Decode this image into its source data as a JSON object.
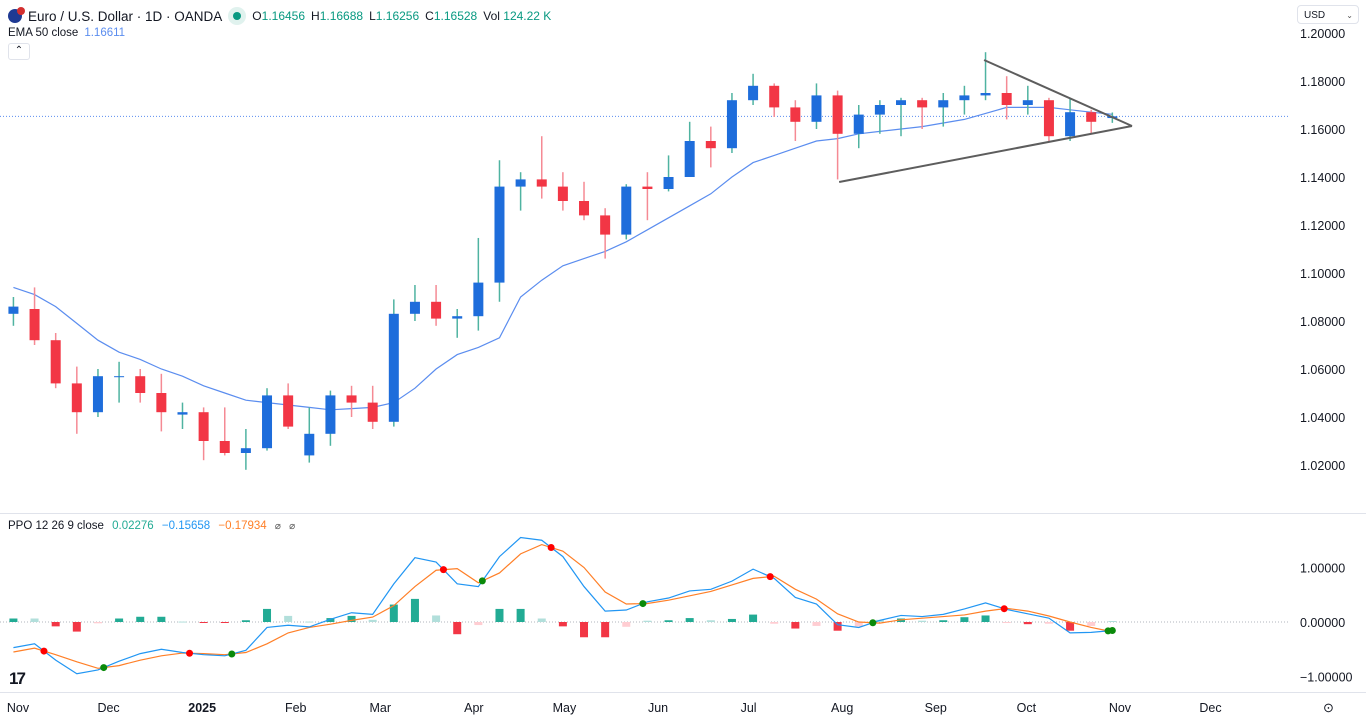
{
  "header": {
    "symbol_title": "Euro / U.S. Dollar · 1D · OANDA",
    "market_status": "open",
    "ohlc": {
      "o_label": "O",
      "o": "1.16456",
      "h_label": "H",
      "h": "1.16688",
      "l_label": "L",
      "l": "1.16256",
      "c_label": "C",
      "c": "1.16528",
      "vol_label": "Vol",
      "vol": "124.22 K"
    },
    "ema_label": "EMA 50 close",
    "ema_value": "1.16611",
    "collapse_icon": "chevron-up-icon",
    "currency": "USD"
  },
  "ppo_legend": {
    "label": "PPO 12 26 9 close",
    "hist": "0.02276",
    "ppo": "−0.15658",
    "signal": "−0.17934",
    "icons": [
      "⌀",
      "⌀"
    ]
  },
  "colors": {
    "up": "#1e6ddb",
    "up_wick": "#4fb3a1",
    "down": "#f23645",
    "ema": "#5b8def",
    "ppo": "#2196f3",
    "signal": "#ff7f27",
    "hist_up": "#22ab94",
    "hist_down": "#f23645",
    "trendline": "#5d5d5d",
    "price_line": "#5b8def"
  },
  "chart_data": [
    {
      "type": "candlestick",
      "title": "Euro / U.S. Dollar · 1D · OANDA",
      "ylim": [
        1.0,
        1.2
      ],
      "y_ticks": [
        "1.20000",
        "1.18000",
        "1.16000",
        "1.14000",
        "1.12000",
        "1.10000",
        "1.08000",
        "1.06000",
        "1.04000",
        "1.02000"
      ],
      "x_ticks": [
        "Nov",
        "Dec",
        "2025",
        "Feb",
        "Mar",
        "Apr",
        "May",
        "Jun",
        "Jul",
        "Aug",
        "Sep",
        "Oct",
        "Nov",
        "Dec"
      ],
      "grid": false,
      "last_price": 1.16528,
      "ohlc_weekly": [
        [
          "2024-10-28",
          1.083,
          1.09,
          1.078,
          1.086
        ],
        [
          "2024-11-04",
          1.085,
          1.094,
          1.07,
          1.072
        ],
        [
          "2024-11-11",
          1.072,
          1.075,
          1.052,
          1.054
        ],
        [
          "2024-11-18",
          1.054,
          1.061,
          1.033,
          1.042
        ],
        [
          "2024-11-25",
          1.042,
          1.06,
          1.04,
          1.057
        ],
        [
          "2024-12-02",
          1.057,
          1.063,
          1.046,
          1.057
        ],
        [
          "2024-12-09",
          1.057,
          1.06,
          1.046,
          1.05
        ],
        [
          "2024-12-16",
          1.05,
          1.058,
          1.034,
          1.042
        ],
        [
          "2024-12-23",
          1.041,
          1.046,
          1.035,
          1.042
        ],
        [
          "2024-12-30",
          1.042,
          1.044,
          1.022,
          1.03
        ],
        [
          "2025-01-06",
          1.03,
          1.044,
          1.024,
          1.025
        ],
        [
          "2025-01-13",
          1.025,
          1.035,
          1.018,
          1.027
        ],
        [
          "2025-01-20",
          1.027,
          1.052,
          1.026,
          1.049
        ],
        [
          "2025-01-27",
          1.049,
          1.054,
          1.035,
          1.036
        ],
        [
          "2025-02-03",
          1.024,
          1.044,
          1.021,
          1.033
        ],
        [
          "2025-02-10",
          1.033,
          1.051,
          1.028,
          1.049
        ],
        [
          "2025-02-17",
          1.049,
          1.053,
          1.04,
          1.046
        ],
        [
          "2025-02-24",
          1.046,
          1.053,
          1.035,
          1.038
        ],
        [
          "2025-03-03",
          1.038,
          1.089,
          1.036,
          1.083
        ],
        [
          "2025-03-10",
          1.083,
          1.095,
          1.08,
          1.088
        ],
        [
          "2025-03-17",
          1.088,
          1.095,
          1.078,
          1.081
        ],
        [
          "2025-03-24",
          1.081,
          1.085,
          1.073,
          1.082
        ],
        [
          "2025-03-31",
          1.082,
          1.1146,
          1.076,
          1.096
        ],
        [
          "2025-04-07",
          1.096,
          1.147,
          1.088,
          1.136
        ],
        [
          "2025-04-14",
          1.136,
          1.142,
          1.126,
          1.139
        ],
        [
          "2025-04-21",
          1.139,
          1.157,
          1.131,
          1.136
        ],
        [
          "2025-04-28",
          1.136,
          1.142,
          1.126,
          1.13
        ],
        [
          "2025-05-05",
          1.13,
          1.138,
          1.122,
          1.124
        ],
        [
          "2025-05-12",
          1.124,
          1.127,
          1.106,
          1.116
        ],
        [
          "2025-05-19",
          1.116,
          1.137,
          1.114,
          1.136
        ],
        [
          "2025-05-26",
          1.136,
          1.142,
          1.122,
          1.135
        ],
        [
          "2025-06-02",
          1.135,
          1.149,
          1.134,
          1.14
        ],
        [
          "2025-06-09",
          1.14,
          1.163,
          1.141,
          1.155
        ],
        [
          "2025-06-16",
          1.155,
          1.161,
          1.144,
          1.152
        ],
        [
          "2025-06-23",
          1.152,
          1.175,
          1.15,
          1.172
        ],
        [
          "2025-06-30",
          1.172,
          1.183,
          1.17,
          1.178
        ],
        [
          "2025-07-07",
          1.178,
          1.179,
          1.165,
          1.169
        ],
        [
          "2025-07-14",
          1.169,
          1.172,
          1.155,
          1.163
        ],
        [
          "2025-07-21",
          1.163,
          1.179,
          1.16,
          1.174
        ],
        [
          "2025-07-28",
          1.174,
          1.176,
          1.139,
          1.158
        ],
        [
          "2025-08-04",
          1.158,
          1.17,
          1.152,
          1.166
        ],
        [
          "2025-08-11",
          1.166,
          1.172,
          1.158,
          1.17
        ],
        [
          "2025-08-18",
          1.17,
          1.173,
          1.157,
          1.172
        ],
        [
          "2025-08-25",
          1.172,
          1.173,
          1.16,
          1.169
        ],
        [
          "2025-09-01",
          1.169,
          1.175,
          1.161,
          1.172
        ],
        [
          "2025-09-08",
          1.172,
          1.178,
          1.166,
          1.174
        ],
        [
          "2025-09-15",
          1.174,
          1.192,
          1.172,
          1.175
        ],
        [
          "2025-09-22",
          1.175,
          1.182,
          1.164,
          1.17
        ],
        [
          "2025-09-29",
          1.17,
          1.178,
          1.166,
          1.172
        ],
        [
          "2025-10-06",
          1.172,
          1.173,
          1.155,
          1.157
        ],
        [
          "2025-10-13",
          1.157,
          1.173,
          1.155,
          1.167
        ],
        [
          "2025-10-20",
          1.167,
          1.168,
          1.158,
          1.163
        ],
        [
          "2025-10-27",
          1.16456,
          1.16688,
          1.16256,
          1.16528
        ]
      ],
      "ema50": [
        1.094,
        1.091,
        1.086,
        1.079,
        1.072,
        1.067,
        1.064,
        1.06,
        1.057,
        1.053,
        1.05,
        1.047,
        1.046,
        1.045,
        1.044,
        1.043,
        1.0435,
        1.044,
        1.046,
        1.052,
        1.06,
        1.066,
        1.069,
        1.073,
        1.09,
        1.097,
        1.103,
        1.106,
        1.109,
        1.113,
        1.118,
        1.123,
        1.128,
        1.133,
        1.14,
        1.146,
        1.149,
        1.152,
        1.155,
        1.156,
        1.158,
        1.159,
        1.16,
        1.161,
        1.1625,
        1.164,
        1.1665,
        1.169,
        1.169,
        1.169,
        1.168,
        1.167,
        1.16611
      ],
      "trendlines": [
        {
          "from": [
            "2025-09-17",
            1.18875
          ],
          "to": [
            "2025-11-05",
            1.16125
          ]
        },
        {
          "from": [
            "2025-07-31",
            1.1379
          ],
          "to": [
            "2025-11-05",
            1.16125
          ]
        }
      ]
    },
    {
      "type": "line",
      "title": "PPO 12 26 9 close",
      "ylim": [
        -1.2,
        1.8
      ],
      "y_ticks": [
        "1.00000",
        "0.00000",
        "−1.00000"
      ],
      "series": [
        {
          "name": "PPO",
          "values": [
            -0.47,
            -0.4,
            -0.7,
            -0.95,
            -0.88,
            -0.72,
            -0.58,
            -0.5,
            -0.56,
            -0.6,
            -0.62,
            -0.52,
            -0.1,
            -0.06,
            -0.09,
            0.05,
            0.17,
            0.14,
            0.7,
            1.18,
            1.1,
            0.7,
            0.65,
            1.2,
            1.55,
            1.5,
            1.2,
            0.65,
            0.2,
            0.22,
            0.37,
            0.44,
            0.57,
            0.6,
            0.75,
            0.97,
            0.8,
            0.45,
            0.33,
            -0.05,
            -0.1,
            0.03,
            0.12,
            0.1,
            0.14,
            0.24,
            0.35,
            0.23,
            0.15,
            0.07,
            -0.2,
            -0.19,
            -0.15658
          ]
        },
        {
          "name": "Signal",
          "values": [
            -0.55,
            -0.48,
            -0.6,
            -0.73,
            -0.85,
            -0.8,
            -0.7,
            -0.62,
            -0.57,
            -0.58,
            -0.6,
            -0.56,
            -0.4,
            -0.2,
            -0.1,
            -0.04,
            0.03,
            0.09,
            0.3,
            0.65,
            0.95,
            0.98,
            0.72,
            0.9,
            1.25,
            1.42,
            1.3,
            1.0,
            0.55,
            0.33,
            0.34,
            0.4,
            0.48,
            0.56,
            0.68,
            0.8,
            0.84,
            0.6,
            0.42,
            0.15,
            0.0,
            -0.02,
            0.04,
            0.07,
            0.1,
            0.13,
            0.2,
            0.25,
            0.2,
            0.11,
            0.0,
            -0.1,
            -0.17934
          ]
        }
      ]
    }
  ]
}
